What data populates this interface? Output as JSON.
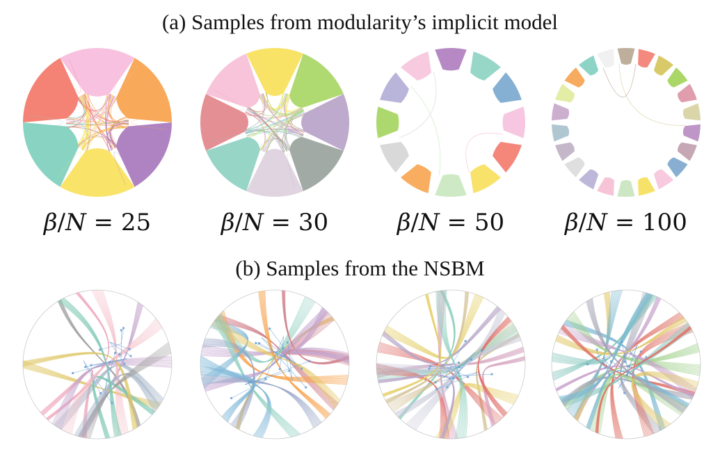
{
  "figure": {
    "caption_a": "(a) Samples from modularity’s implicit model",
    "caption_b": "(b) Samples from the NSBM",
    "panels_a": [
      {
        "beta_prefix": "β",
        "beta_mid": "/",
        "beta_var": "N",
        "beta_eq": " = ",
        "beta_value": "25",
        "groups": 6,
        "spoke_opacity": 0.55,
        "colors": [
          "#f7bcdc",
          "#f7a24c",
          "#a878bd",
          "#f8e15c",
          "#7fcfbd",
          "#f3786a"
        ]
      },
      {
        "beta_prefix": "β",
        "beta_mid": "/",
        "beta_var": "N",
        "beta_eq": " = ",
        "beta_value": "30",
        "groups": 8,
        "spoke_opacity": 0.35,
        "colors": [
          "#f7e15a",
          "#a8d665",
          "#b9a3c8",
          "#9aa39d",
          "#ddd0de",
          "#8ed1c2",
          "#e2868a",
          "#f6bfd6"
        ]
      },
      {
        "beta_prefix": "β",
        "beta_mid": "/",
        "beta_var": "N",
        "beta_eq": " = ",
        "beta_value": "50",
        "groups": 12,
        "spoke_opacity": 0.12,
        "colors": [
          "#b07fbf",
          "#8ed4c3",
          "#7ba9cf",
          "#f6c1dd",
          "#f37c6f",
          "#f8e05c",
          "#c9e8c0",
          "#f8a653",
          "#d6d6d6",
          "#a5d561",
          "#b3aed6",
          "#f7c5dc"
        ]
      },
      {
        "beta_prefix": "β",
        "beta_mid": "/",
        "beta_var": "N",
        "beta_eq": " = ",
        "beta_value": "100",
        "groups": 22,
        "spoke_opacity": 0.06,
        "colors": [
          "#b8a894",
          "#f28072",
          "#d5c55b",
          "#a4d45c",
          "#dd95a6",
          "#d7d2a2",
          "#b98dc2",
          "#c1a0ae",
          "#7ea8cd",
          "#f6c6dd",
          "#f6e05c",
          "#c9e5bf",
          "#f6bfd4",
          "#b7b1d6",
          "#dcdcdc",
          "#c0b1c6",
          "#a9c2cd",
          "#c8a7cb",
          "#e2ec9d",
          "#f6a452",
          "#83d0c2",
          "#f0f0f0"
        ]
      }
    ],
    "panels_b": [
      {
        "palette": [
          "#f0aac0",
          "#c4a5cc",
          "#e0c86a",
          "#a8b8c8",
          "#a0a0a0",
          "#f4c0c8",
          "#80c9b5"
        ]
      },
      {
        "palette": [
          "#d07f8a",
          "#7cb7d7",
          "#c3a4cf",
          "#e7c86b",
          "#8fd0c0",
          "#f7a24c",
          "#9aa7c9"
        ]
      },
      {
        "palette": [
          "#d6c49a",
          "#8ed0be",
          "#d7a6c1",
          "#e6cf6a",
          "#e06f6a",
          "#c8c8d8",
          "#b8a8c8"
        ]
      },
      {
        "palette": [
          "#e07268",
          "#7ab8d4",
          "#9fcf8a",
          "#c8a2cc",
          "#8ac8bf",
          "#e2c86c",
          "#a5a5b5"
        ]
      }
    ]
  }
}
